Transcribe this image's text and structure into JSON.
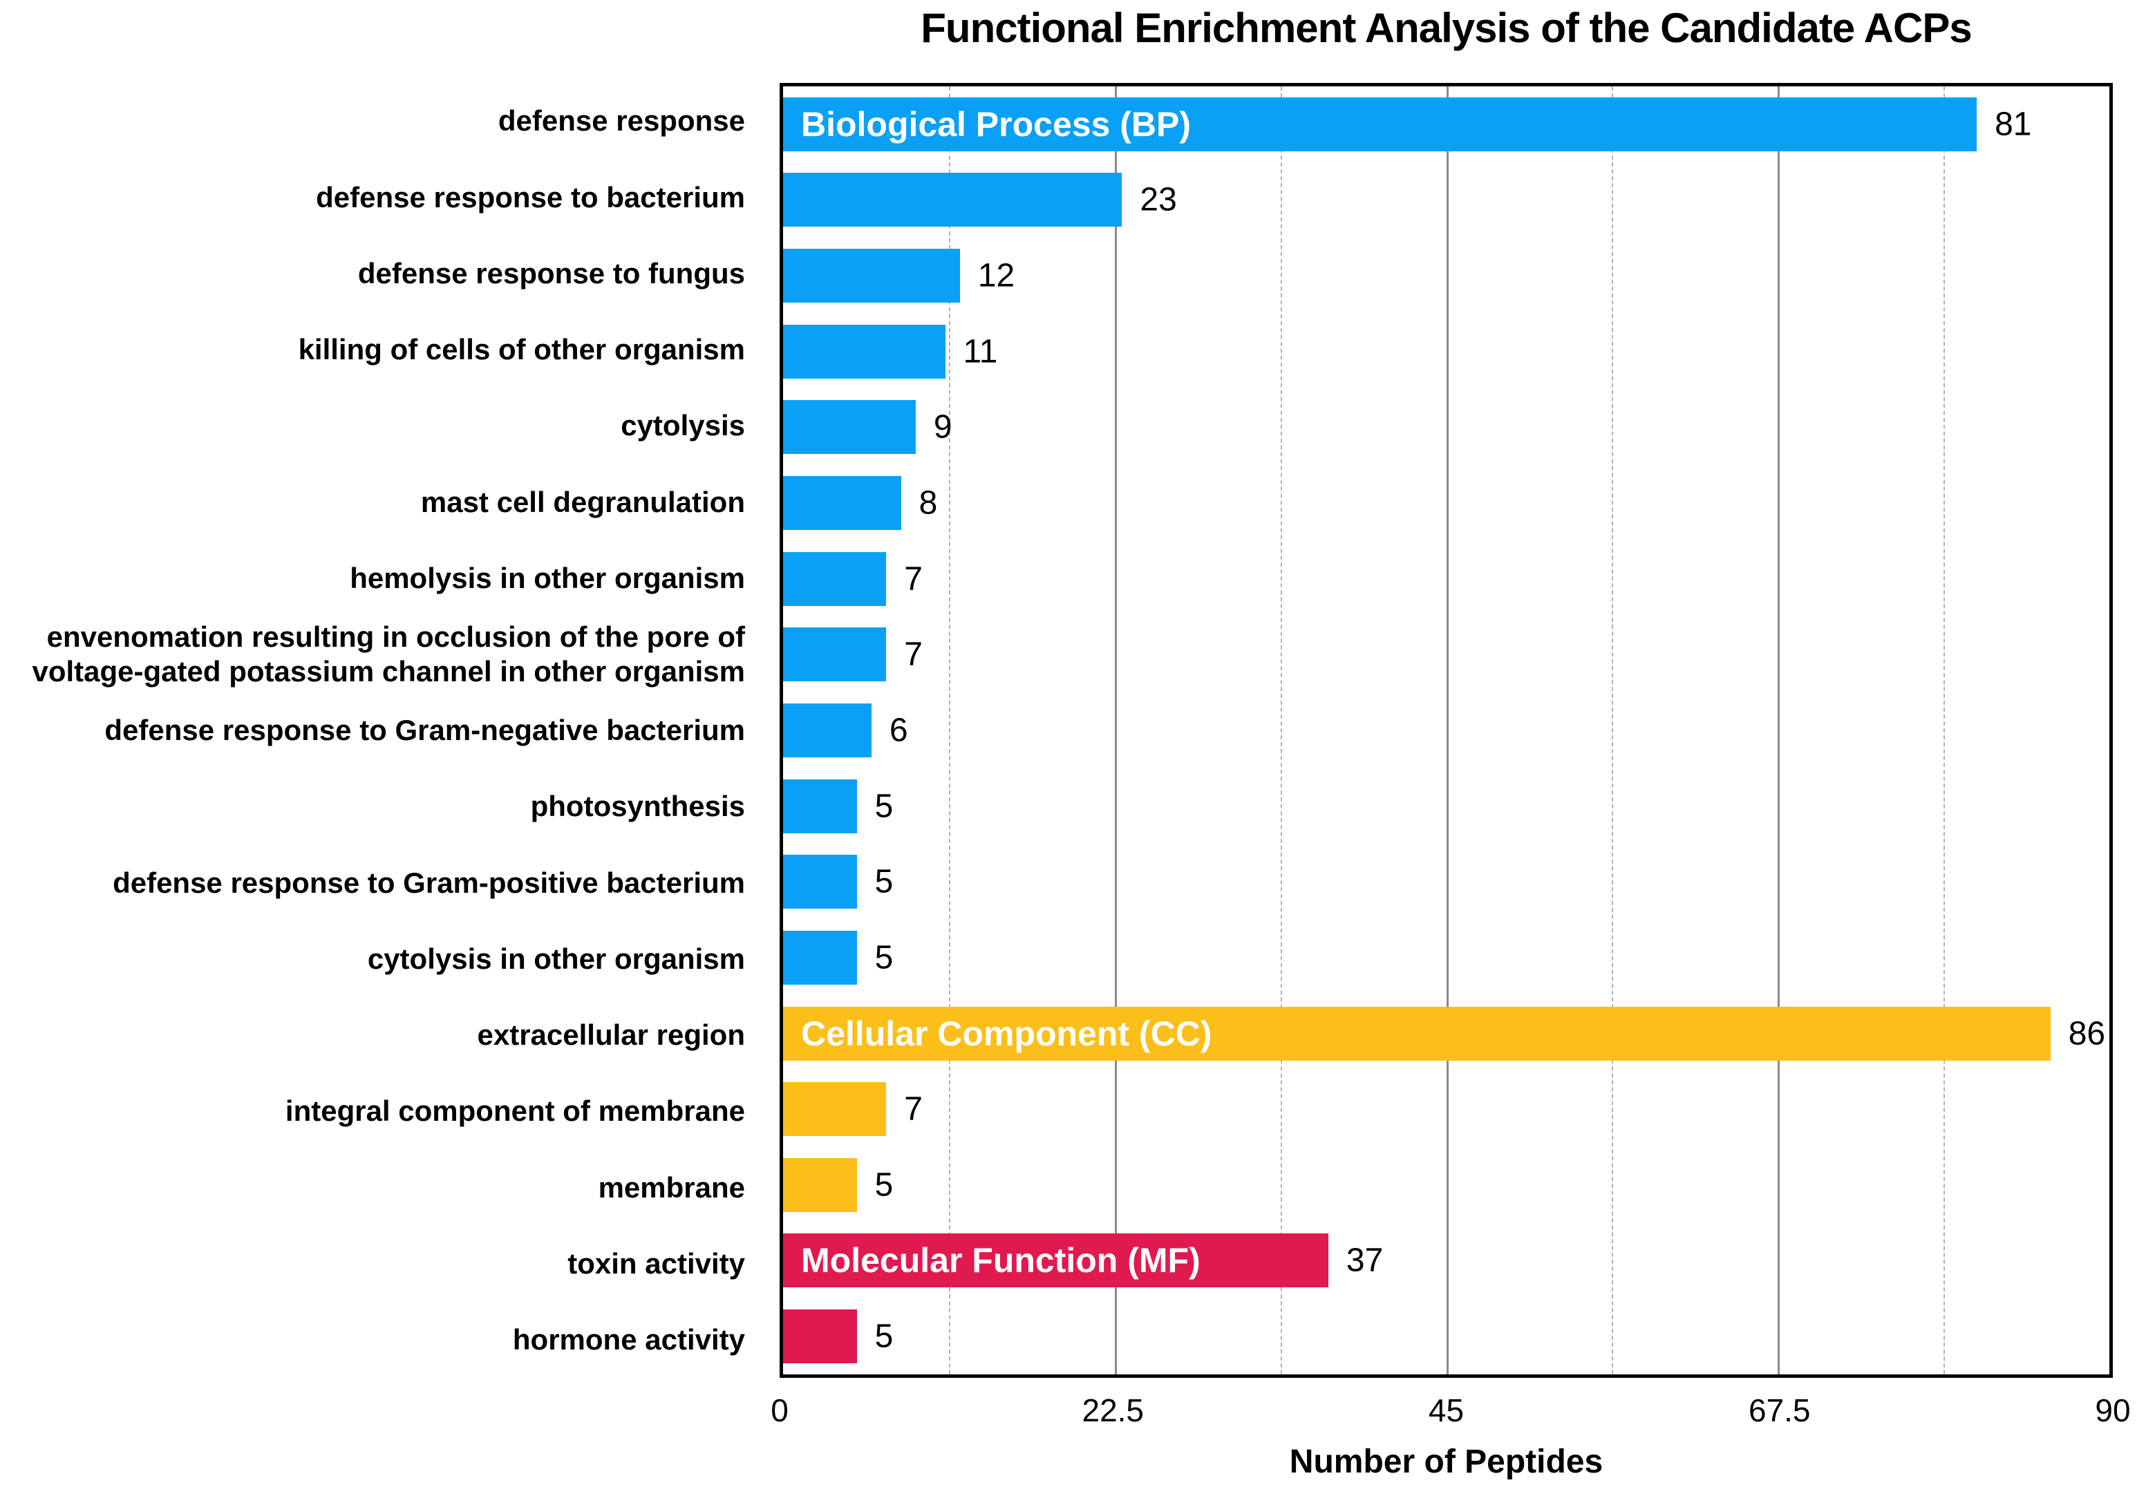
{
  "title": "Functional Enrichment Analysis of the Candidate ACPs",
  "x_axis": {
    "label": "Number of Peptides",
    "ticks": [
      {
        "label": "0",
        "value": 0
      },
      {
        "label": "22.5",
        "value": 22.5
      },
      {
        "label": "45",
        "value": 45
      },
      {
        "label": "67.5",
        "value": 67.5
      },
      {
        "label": "90",
        "value": 90
      }
    ]
  },
  "chart_data": {
    "type": "bar",
    "orientation": "horizontal",
    "title": "Functional Enrichment Analysis of the Candidate ACPs",
    "xlabel": "Number of Peptides",
    "ylabel": "",
    "xlim": [
      0,
      90
    ],
    "grid": "vertical, major solid at 22.5 intervals, minor dashed at 11.25 intervals",
    "legend_position": "none (group labels drawn inside first bar of each group)",
    "major_gridlines": [
      22.5,
      45,
      67.5
    ],
    "minor_gridlines": [
      11.25,
      33.75,
      56.25,
      78.75
    ],
    "groups": {
      "BP": {
        "label": "Biological Process (BP)",
        "color": "#0AA0F5"
      },
      "CC": {
        "label": "Cellular Component (CC)",
        "color": "#FCBE19"
      },
      "MF": {
        "label": "Molecular Function (MF)",
        "color": "#E01A4F"
      }
    },
    "rows": [
      {
        "label": "defense response",
        "value": 81,
        "group": "BP",
        "show_group_label": true
      },
      {
        "label": "defense response to bacterium",
        "value": 23,
        "group": "BP",
        "show_group_label": false
      },
      {
        "label": "defense response to fungus",
        "value": 12,
        "group": "BP",
        "show_group_label": false
      },
      {
        "label": "killing of cells of other organism",
        "value": 11,
        "group": "BP",
        "show_group_label": false
      },
      {
        "label": "cytolysis",
        "value": 9,
        "group": "BP",
        "show_group_label": false
      },
      {
        "label": "mast cell degranulation",
        "value": 8,
        "group": "BP",
        "show_group_label": false
      },
      {
        "label": "hemolysis in other organism",
        "value": 7,
        "group": "BP",
        "show_group_label": false
      },
      {
        "label": "envenomation resulting in occlusion of the pore of voltage-gated potassium channel in other organism",
        "value": 7,
        "group": "BP",
        "show_group_label": false
      },
      {
        "label": "defense response to Gram-negative bacterium",
        "value": 6,
        "group": "BP",
        "show_group_label": false
      },
      {
        "label": "photosynthesis",
        "value": 5,
        "group": "BP",
        "show_group_label": false
      },
      {
        "label": "defense response to Gram-positive bacterium",
        "value": 5,
        "group": "BP",
        "show_group_label": false
      },
      {
        "label": "cytolysis in other organism",
        "value": 5,
        "group": "BP",
        "show_group_label": false
      },
      {
        "label": "extracellular region",
        "value": 86,
        "group": "CC",
        "show_group_label": true
      },
      {
        "label": "integral component of membrane",
        "value": 7,
        "group": "CC",
        "show_group_label": false
      },
      {
        "label": "membrane",
        "value": 5,
        "group": "CC",
        "show_group_label": false
      },
      {
        "label": "toxin activity",
        "value": 37,
        "group": "MF",
        "show_group_label": true
      },
      {
        "label": "hormone activity",
        "value": 5,
        "group": "MF",
        "show_group_label": false
      }
    ]
  }
}
